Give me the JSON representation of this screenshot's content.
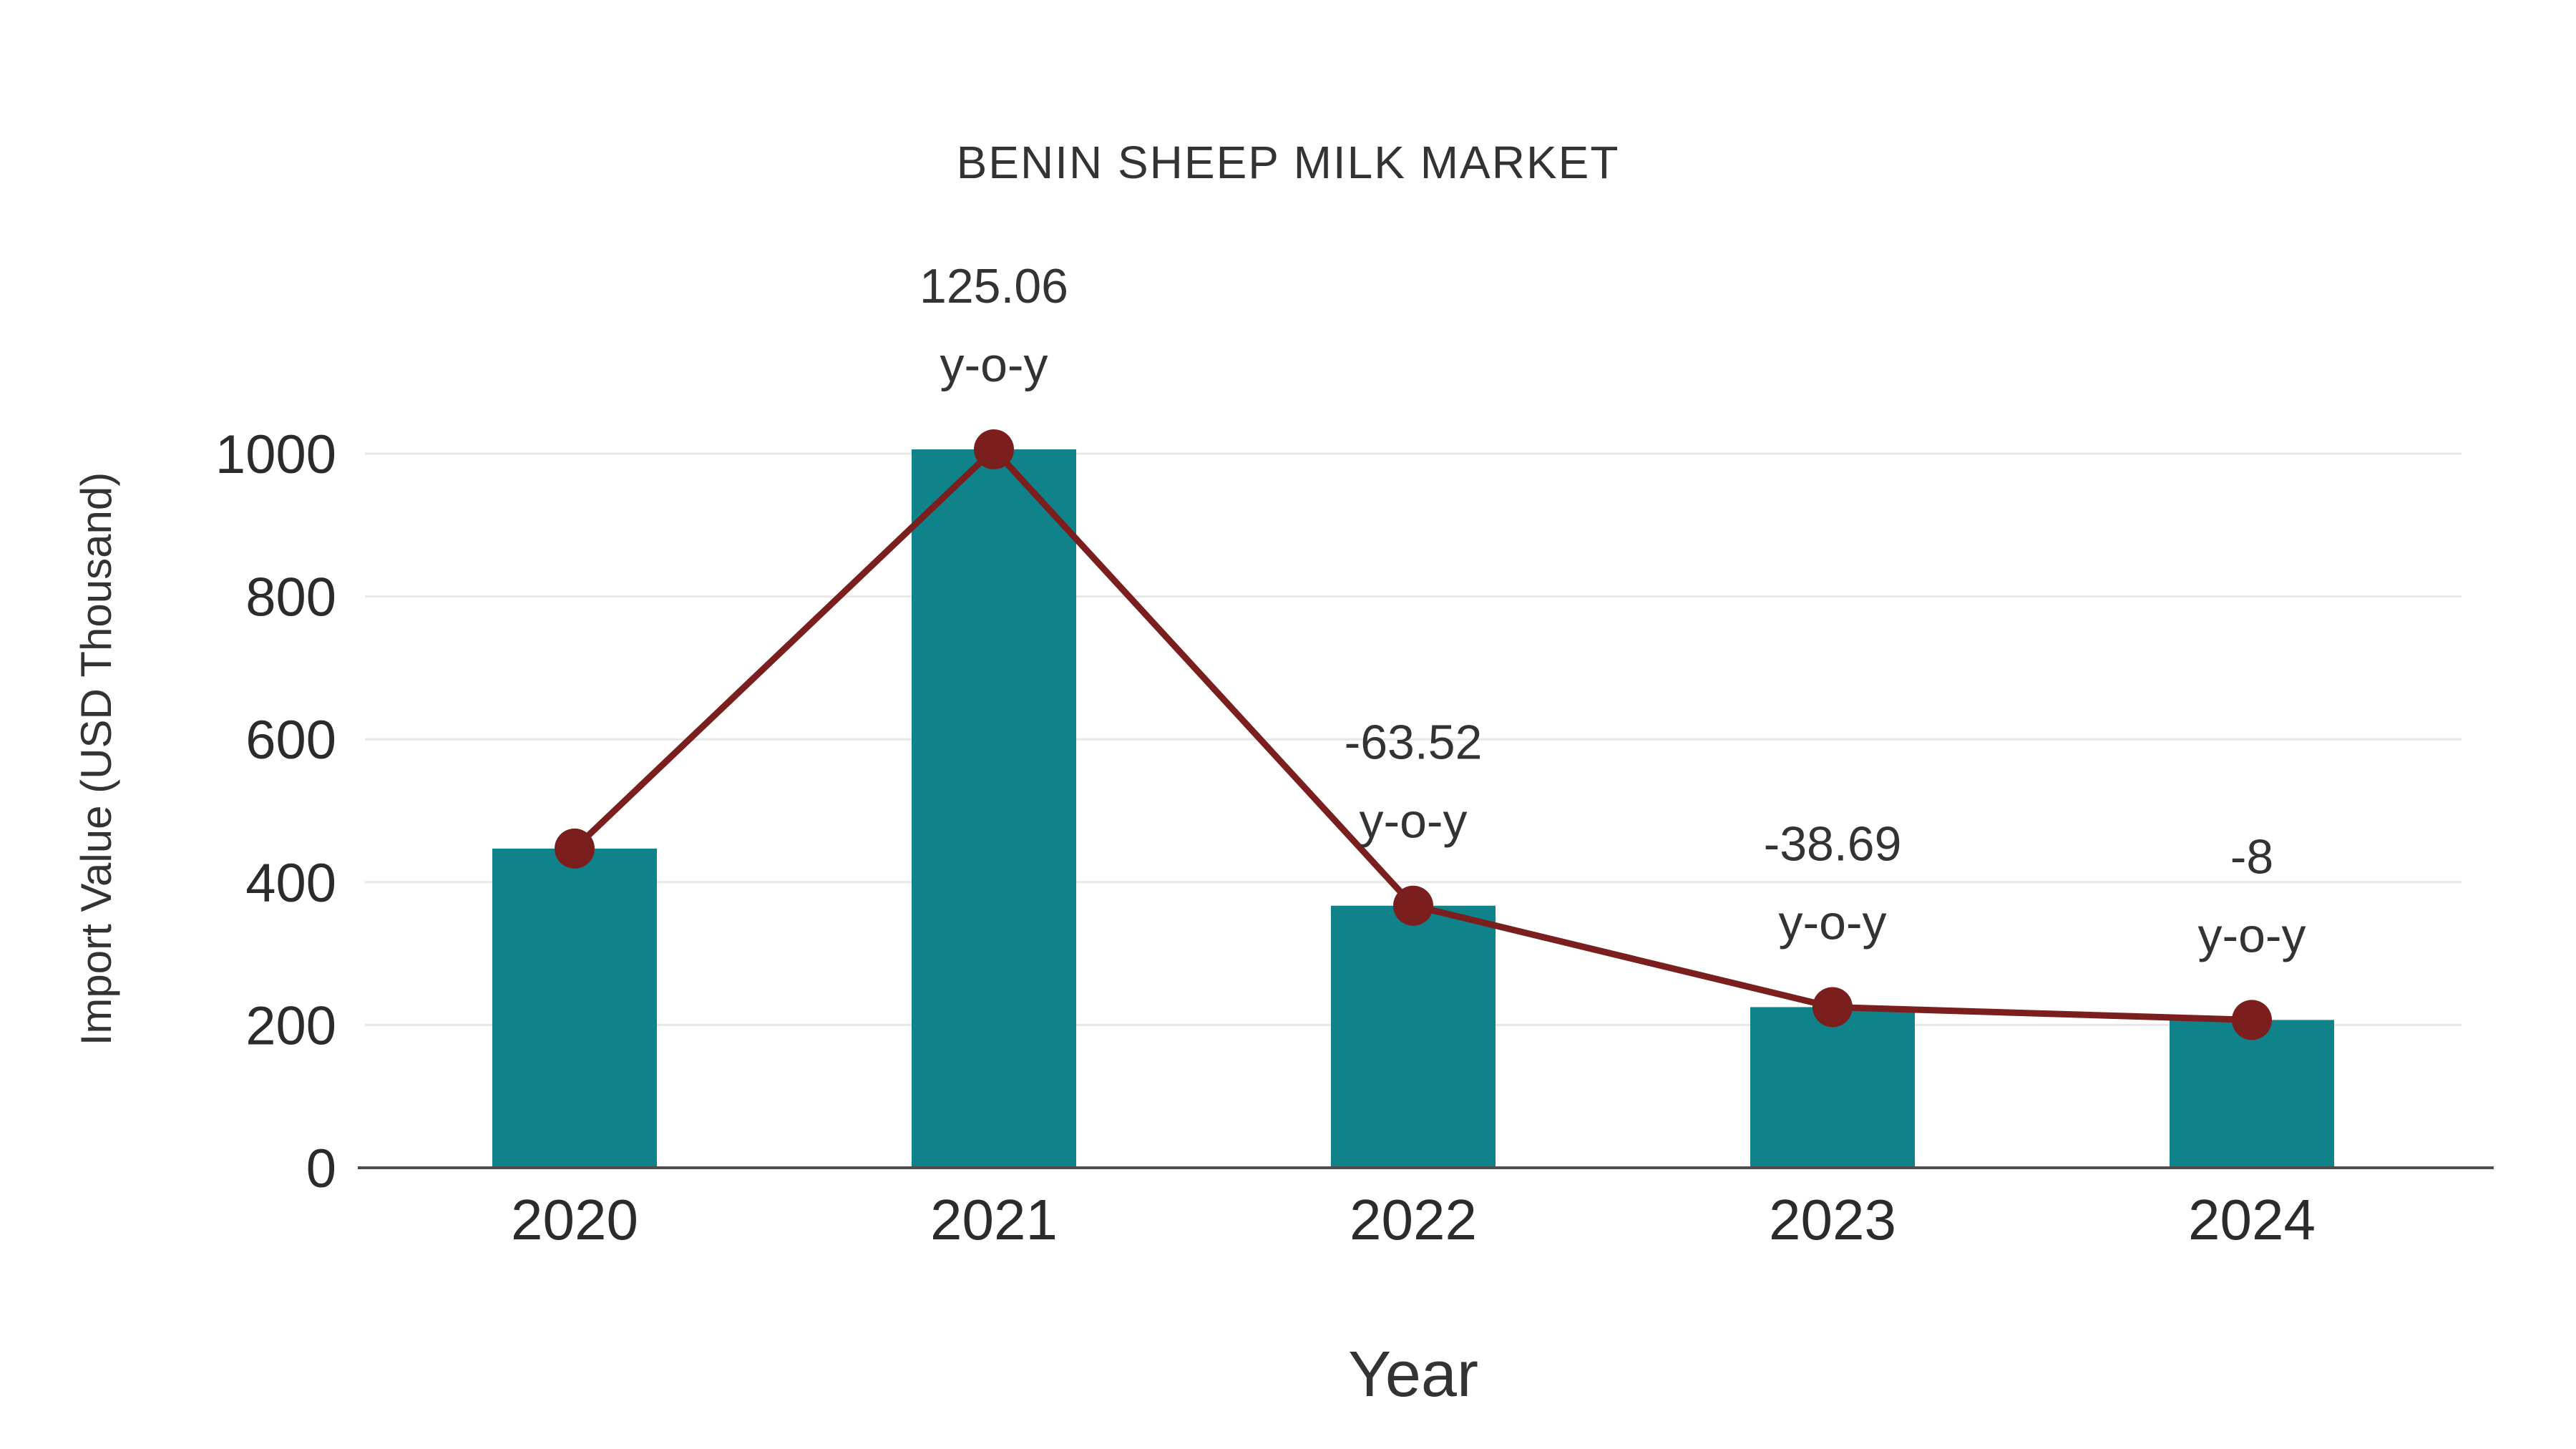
{
  "chart_data": {
    "type": "bar+line",
    "title": "BENIN SHEEP MILK MARKET",
    "xlabel": "Year",
    "ylabel": "Import Value (USD Thousand)",
    "categories": [
      "2020",
      "2021",
      "2022",
      "2023",
      "2024"
    ],
    "series": [
      {
        "name": "Import Value",
        "kind": "bar",
        "values": [
          447,
          1006,
          367,
          225,
          207
        ],
        "color": "#10838A"
      },
      {
        "name": "y-o-y",
        "kind": "line",
        "values": [
          447,
          1006,
          367,
          225,
          207
        ],
        "color": "#7A1E1E"
      }
    ],
    "yoy_percent": [
      null,
      125.06,
      -63.52,
      -38.69,
      -8
    ],
    "annotations": [
      {
        "category": "2021",
        "value": "125.06",
        "suffix": "y-o-y"
      },
      {
        "category": "2022",
        "value": "-63.52",
        "suffix": "y-o-y"
      },
      {
        "category": "2023",
        "value": "-38.69",
        "suffix": "y-o-y"
      },
      {
        "category": "2024",
        "value": "-8",
        "suffix": "y-o-y"
      }
    ],
    "yticks": [
      0,
      200,
      400,
      600,
      800,
      1000
    ],
    "ylim": [
      0,
      1100
    ],
    "grid": true,
    "legend": "none",
    "colors": {
      "bar": "#10838A",
      "line": "#7A1E1E",
      "text": "#333333",
      "tick_text": "#2B2B2B",
      "grid": "#E7E7E7",
      "axis": "#4D4D4D",
      "background": "#FFFFFF"
    }
  }
}
